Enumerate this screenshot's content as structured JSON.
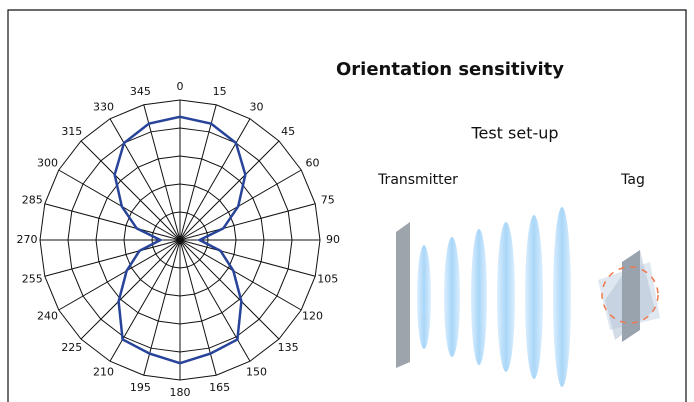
{
  "chart_data": {
    "type": "polar",
    "title": "Orientation sensitivity",
    "annotations": [
      "Test set-up",
      "Transmitter",
      "Tag"
    ],
    "theta": [
      0,
      15,
      30,
      45,
      60,
      75,
      90,
      105,
      120,
      135,
      150,
      165,
      180,
      195,
      210,
      225,
      240,
      255,
      270,
      285,
      300,
      315,
      330,
      345
    ],
    "values": [
      4.4,
      4.3,
      4.0,
      3.3,
      2.4,
      1.6,
      0.7,
      1.5,
      2.2,
      3.1,
      4.1,
      4.2,
      4.4,
      4.2,
      4.1,
      3.1,
      2.2,
      1.5,
      0.7,
      1.6,
      2.4,
      3.3,
      4.0,
      4.3
    ],
    "color": "#27449a",
    "rlim": [
      0,
      5
    ],
    "rticks": [
      1,
      2,
      3,
      4,
      5
    ],
    "grid": true
  }
}
